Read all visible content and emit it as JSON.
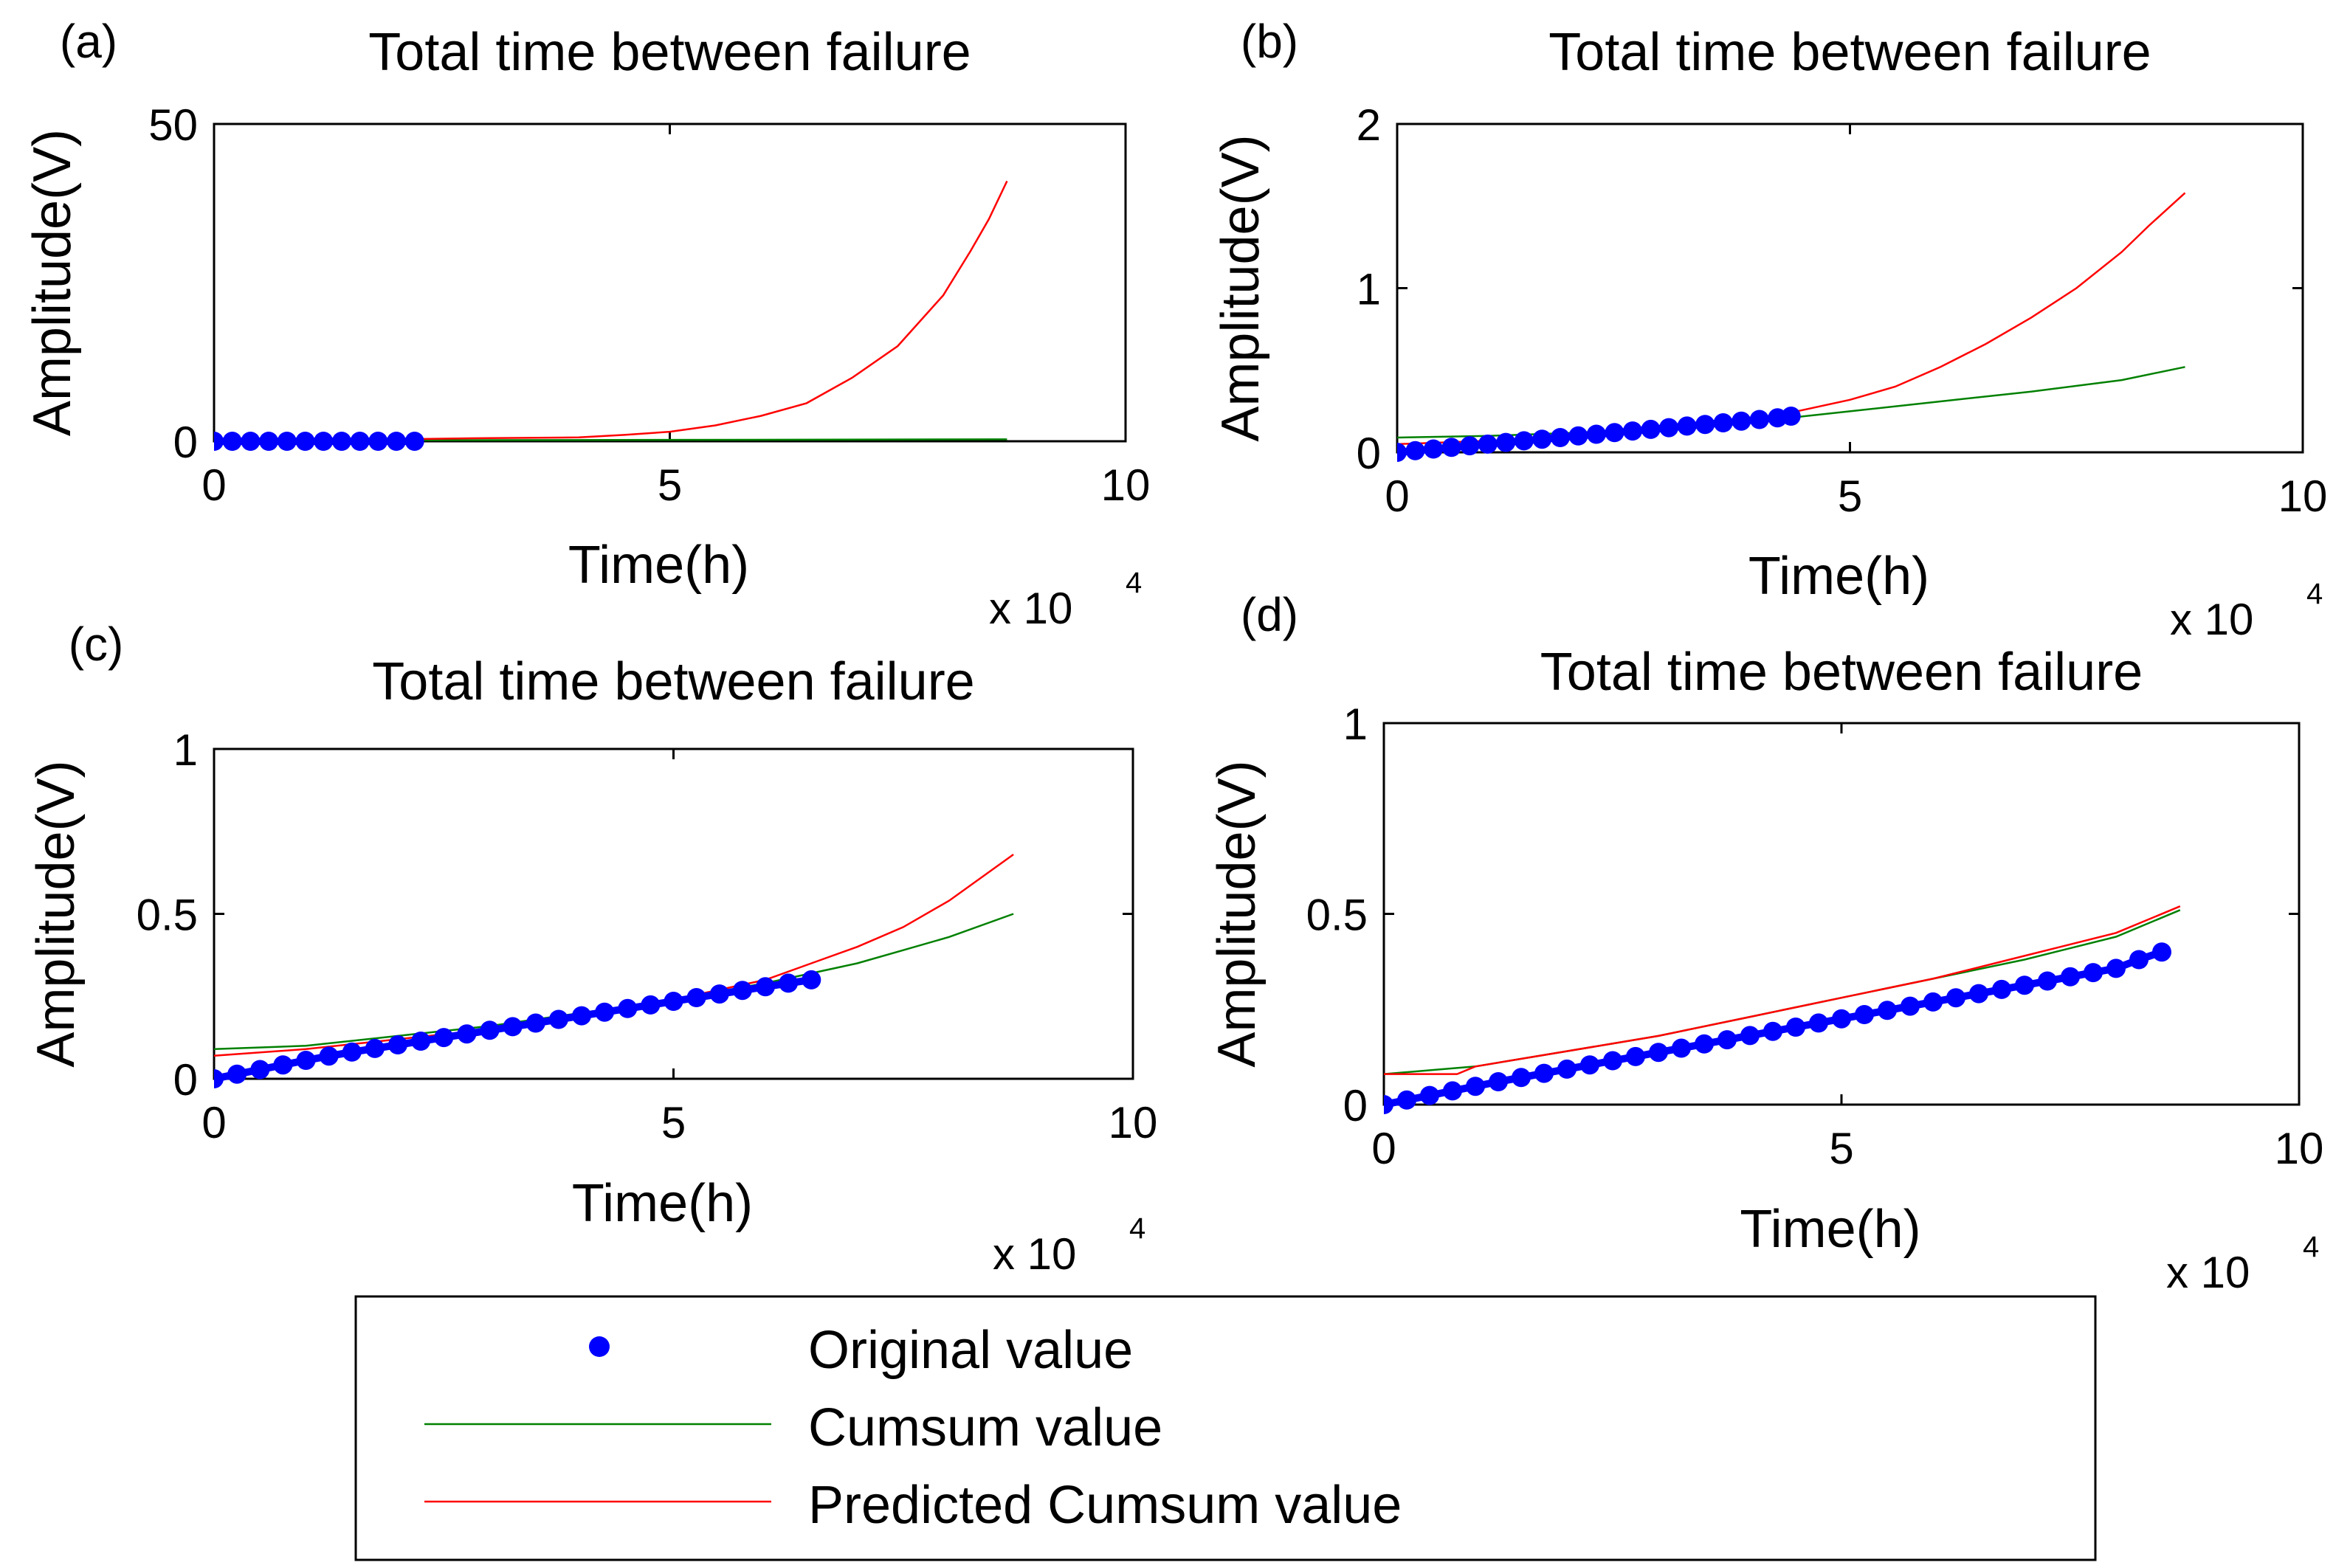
{
  "chart_data": [
    {
      "panel_label": "(a)",
      "type": "line",
      "title": "Total time between failure",
      "xlabel": "Time(h)",
      "ylabel": "Amplitude(V)",
      "x_exponent": "x 10",
      "x_exponent_power": "4",
      "xlim": [
        0,
        10
      ],
      "ylim": [
        0,
        50
      ],
      "xticks": [
        "0",
        "5",
        "10"
      ],
      "yticks": [
        "0",
        "50"
      ],
      "series": [
        {
          "name": "Original value",
          "kind": "markers",
          "color": "#0000ff",
          "x": [
            0.0,
            0.2,
            0.4,
            0.6,
            0.8,
            1.0,
            1.2,
            1.4,
            1.6,
            1.8,
            2.0,
            2.2
          ],
          "y": [
            0,
            0,
            0,
            0,
            0,
            0,
            0,
            0,
            0,
            0,
            0,
            0
          ]
        },
        {
          "name": "Cumsum value",
          "kind": "line",
          "color": "#008000",
          "x": [
            0,
            8.7
          ],
          "y": [
            0.1,
            0.3
          ]
        },
        {
          "name": "Predicted Cumsum value",
          "kind": "line",
          "color": "#ff0000",
          "x": [
            0,
            2,
            3,
            4,
            4.5,
            5,
            5.5,
            6,
            6.5,
            7,
            7.5,
            8,
            8.3,
            8.5,
            8.7
          ],
          "y": [
            0.2,
            0.3,
            0.5,
            0.6,
            1.0,
            1.5,
            2.5,
            4,
            6,
            10,
            15,
            23,
            30,
            35,
            41
          ]
        }
      ]
    },
    {
      "panel_label": "(b)",
      "type": "line",
      "title": "Total time between failure",
      "xlabel": "Time(h)",
      "ylabel": "Amplitude(V)",
      "x_exponent": "x 10",
      "x_exponent_power": "4",
      "xlim": [
        0,
        10
      ],
      "ylim": [
        0,
        2
      ],
      "xticks": [
        "0",
        "5",
        "10"
      ],
      "yticks": [
        "0",
        "1",
        "2"
      ],
      "series": [
        {
          "name": "Original value",
          "kind": "markers",
          "color": "#0000ff",
          "x": [
            0.0,
            0.2,
            0.4,
            0.6,
            0.8,
            1.0,
            1.2,
            1.4,
            1.6,
            1.8,
            2.0,
            2.2,
            2.4,
            2.6,
            2.8,
            3.0,
            3.2,
            3.4,
            3.6,
            3.8,
            4.0,
            4.2,
            4.35
          ],
          "y": [
            0.0,
            0.01,
            0.02,
            0.03,
            0.04,
            0.05,
            0.06,
            0.07,
            0.08,
            0.09,
            0.1,
            0.11,
            0.12,
            0.13,
            0.14,
            0.15,
            0.16,
            0.17,
            0.18,
            0.19,
            0.2,
            0.21,
            0.22
          ]
        },
        {
          "name": "Cumsum value",
          "kind": "line",
          "color": "#008000",
          "x": [
            0,
            1,
            2,
            3,
            4,
            5,
            6,
            7,
            8,
            8.7
          ],
          "y": [
            0.09,
            0.1,
            0.12,
            0.15,
            0.19,
            0.25,
            0.31,
            0.37,
            0.44,
            0.52
          ]
        },
        {
          "name": "Predicted Cumsum value",
          "kind": "line",
          "color": "#ff0000",
          "x": [
            0,
            1,
            2,
            3,
            4,
            5,
            5.5,
            6,
            6.5,
            7,
            7.5,
            8,
            8.3,
            8.7
          ],
          "y": [
            0.05,
            0.07,
            0.1,
            0.14,
            0.2,
            0.32,
            0.4,
            0.52,
            0.66,
            0.82,
            1.0,
            1.22,
            1.38,
            1.58
          ]
        }
      ]
    },
    {
      "panel_label": "(c)",
      "type": "line",
      "title": "Total time between failure",
      "xlabel": "Time(h)",
      "ylabel": "Amplitude(V)",
      "x_exponent": "x 10",
      "x_exponent_power": "4",
      "xlim": [
        0,
        10
      ],
      "ylim": [
        0,
        1
      ],
      "xticks": [
        "0",
        "5",
        "10"
      ],
      "yticks": [
        "0",
        "0.5",
        "1"
      ],
      "series": [
        {
          "name": "Original value",
          "kind": "markers",
          "color": "#0000ff",
          "x": [
            0.0,
            0.25,
            0.5,
            0.75,
            1.0,
            1.25,
            1.5,
            1.75,
            2.0,
            2.25,
            2.5,
            2.75,
            3.0,
            3.25,
            3.5,
            3.75,
            4.0,
            4.25,
            4.5,
            4.75,
            5.0,
            5.25,
            5.5,
            5.75,
            6.0,
            6.25,
            6.5
          ],
          "y": [
            0.0,
            0.014,
            0.028,
            0.042,
            0.056,
            0.069,
            0.081,
            0.092,
            0.103,
            0.114,
            0.125,
            0.136,
            0.147,
            0.158,
            0.169,
            0.18,
            0.191,
            0.202,
            0.213,
            0.224,
            0.235,
            0.246,
            0.257,
            0.268,
            0.279,
            0.29,
            0.3
          ]
        },
        {
          "name": "Cumsum value",
          "kind": "line",
          "color": "#008000",
          "x": [
            0,
            1,
            2,
            3,
            4,
            5,
            6,
            6.5,
            7,
            7.5,
            8,
            8.7
          ],
          "y": [
            0.09,
            0.1,
            0.13,
            0.16,
            0.2,
            0.24,
            0.29,
            0.32,
            0.35,
            0.39,
            0.43,
            0.5
          ]
        },
        {
          "name": "Predicted Cumsum value",
          "kind": "line",
          "color": "#ff0000",
          "x": [
            0,
            1,
            2,
            3,
            4,
            5,
            6,
            6.5,
            7,
            7.5,
            8,
            8.7
          ],
          "y": [
            0.07,
            0.09,
            0.12,
            0.15,
            0.19,
            0.24,
            0.3,
            0.35,
            0.4,
            0.46,
            0.54,
            0.68
          ]
        }
      ]
    },
    {
      "panel_label": "(d)",
      "type": "line",
      "title": "Total time between failure",
      "xlabel": "Time(h)",
      "ylabel": "Amplitude(V)",
      "x_exponent": "x 10",
      "x_exponent_power": "4",
      "xlim": [
        0,
        10
      ],
      "ylim": [
        0,
        1
      ],
      "xticks": [
        "0",
        "5",
        "10"
      ],
      "yticks": [
        "0",
        "0.5",
        "1"
      ],
      "series": [
        {
          "name": "Original value",
          "kind": "markers",
          "color": "#0000ff",
          "x": [
            0.0,
            0.25,
            0.5,
            0.75,
            1.0,
            1.25,
            1.5,
            1.75,
            2.0,
            2.25,
            2.5,
            2.75,
            3.0,
            3.25,
            3.5,
            3.75,
            4.0,
            4.25,
            4.5,
            4.75,
            5.0,
            5.25,
            5.5,
            5.75,
            6.0,
            6.25,
            6.5,
            6.75,
            7.0,
            7.25,
            7.5,
            7.75,
            8.0,
            8.25,
            8.5
          ],
          "y": [
            0.0,
            0.012,
            0.024,
            0.036,
            0.048,
            0.06,
            0.071,
            0.082,
            0.093,
            0.104,
            0.115,
            0.126,
            0.137,
            0.148,
            0.159,
            0.17,
            0.181,
            0.192,
            0.203,
            0.214,
            0.225,
            0.236,
            0.247,
            0.258,
            0.269,
            0.28,
            0.291,
            0.302,
            0.313,
            0.324,
            0.335,
            0.346,
            0.357,
            0.38,
            0.4
          ]
        },
        {
          "name": "Cumsum value",
          "kind": "line",
          "color": "#008000",
          "x": [
            0,
            1,
            2,
            3,
            4,
            5,
            6,
            7,
            8,
            8.7
          ],
          "y": [
            0.08,
            0.1,
            0.14,
            0.18,
            0.23,
            0.28,
            0.33,
            0.38,
            0.44,
            0.51
          ]
        },
        {
          "name": "Predicted Cumsum value",
          "kind": "line",
          "color": "#ff0000",
          "x": [
            0,
            0.8,
            1,
            2,
            3,
            4,
            5,
            6,
            7,
            8,
            8.7
          ],
          "y": [
            0.08,
            0.08,
            0.1,
            0.14,
            0.18,
            0.23,
            0.28,
            0.33,
            0.39,
            0.45,
            0.52
          ]
        }
      ]
    }
  ],
  "legend": {
    "items": [
      {
        "label": "Original value",
        "kind": "marker",
        "color": "#0000ff"
      },
      {
        "label": "Cumsum value",
        "kind": "line",
        "color": "#008000"
      },
      {
        "label": "Predicted Cumsum value",
        "kind": "line",
        "color": "#ff0000"
      }
    ]
  }
}
